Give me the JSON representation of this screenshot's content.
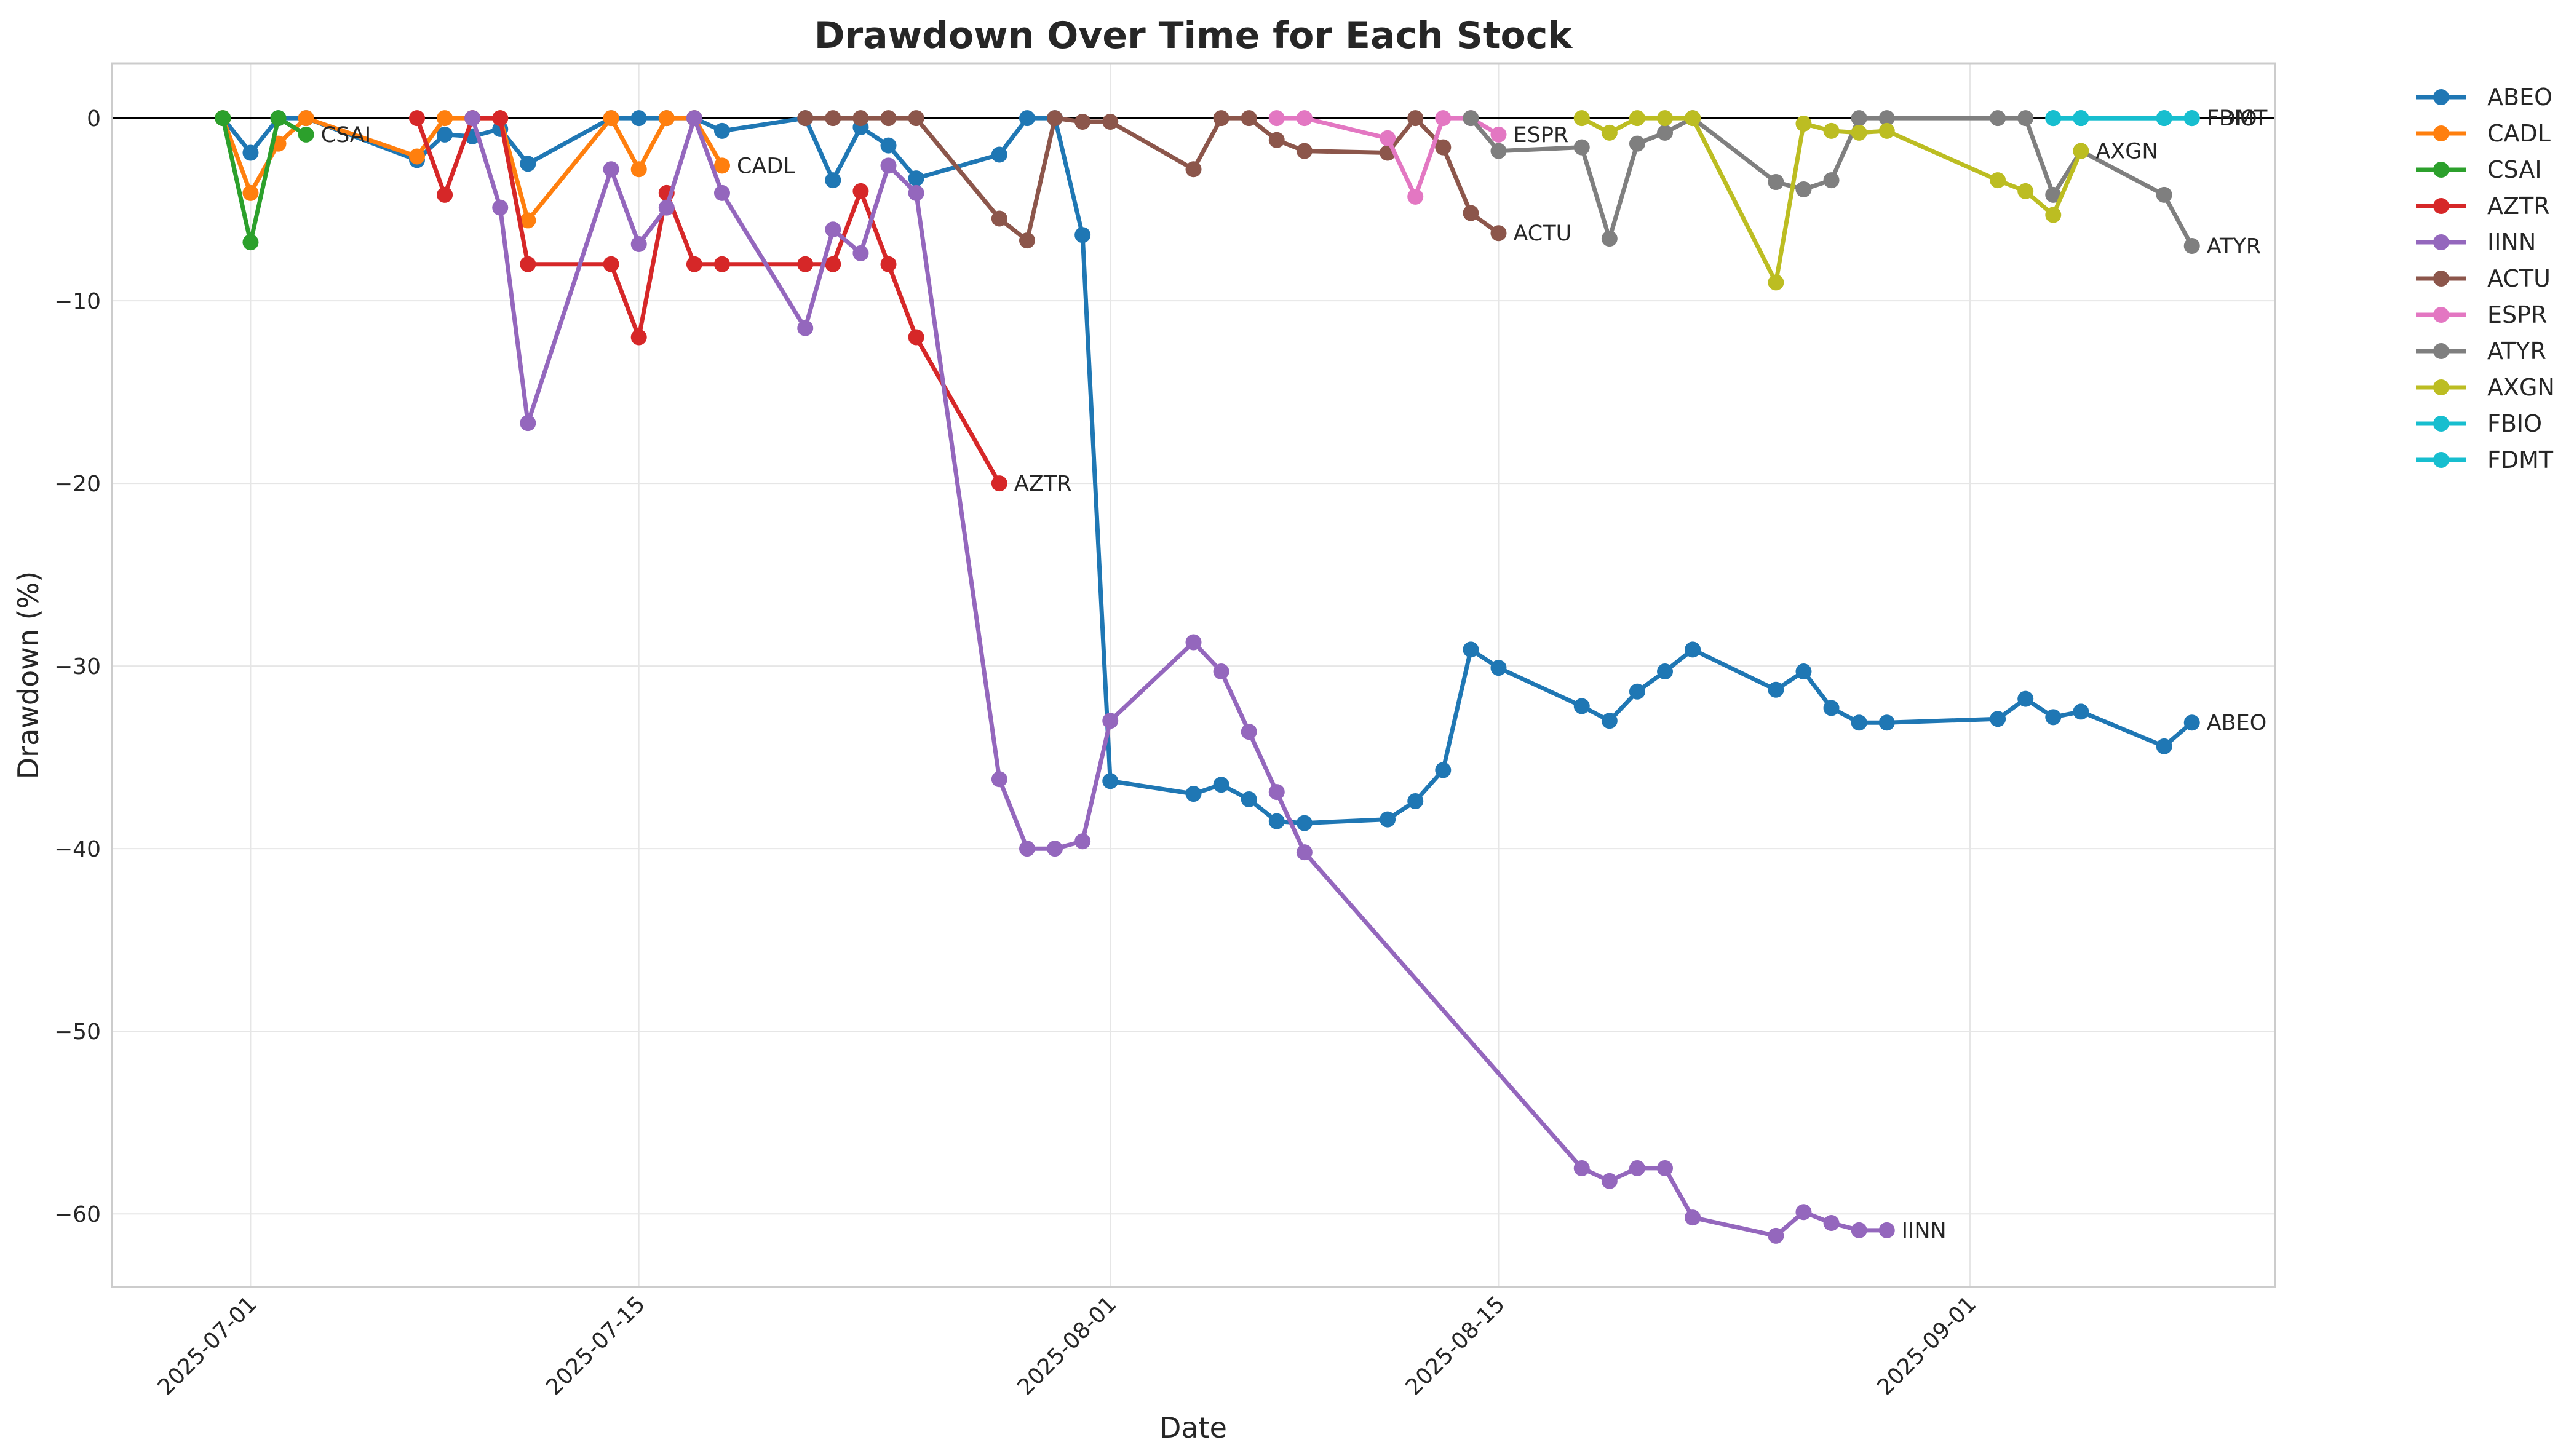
{
  "chart_data": {
    "type": "line",
    "title": "Drawdown Over Time for Each Stock",
    "xlabel": "Date",
    "ylabel": "Drawdown (%)",
    "xlim": [
      "2025-06-26",
      "2025-09-12"
    ],
    "ylim": [
      -64,
      3
    ],
    "x_ticks": [
      "2025-07-01",
      "2025-07-15",
      "2025-08-01",
      "2025-08-15",
      "2025-09-01"
    ],
    "y_ticks": [
      0,
      -10,
      -20,
      -30,
      -40,
      -50,
      -60
    ],
    "grid": true,
    "legend_position": "outside-top-right",
    "zero_line": true,
    "series": [
      {
        "name": "ABEO",
        "color": "#1f77b4",
        "points": [
          [
            "2025-06-30",
            0
          ],
          [
            "2025-07-01",
            -1.9
          ],
          [
            "2025-07-02",
            0
          ],
          [
            "2025-07-03",
            0
          ],
          [
            "2025-07-07",
            -2.3
          ],
          [
            "2025-07-08",
            -0.9
          ],
          [
            "2025-07-09",
            -1.0
          ],
          [
            "2025-07-10",
            -0.6
          ],
          [
            "2025-07-11",
            -2.5
          ],
          [
            "2025-07-14",
            0
          ],
          [
            "2025-07-15",
            0
          ],
          [
            "2025-07-16",
            0
          ],
          [
            "2025-07-17",
            0
          ],
          [
            "2025-07-18",
            -0.7
          ],
          [
            "2025-07-21",
            0
          ],
          [
            "2025-07-22",
            -3.4
          ],
          [
            "2025-07-23",
            -0.5
          ],
          [
            "2025-07-24",
            -1.5
          ],
          [
            "2025-07-25",
            -3.3
          ],
          [
            "2025-07-28",
            -2.0
          ],
          [
            "2025-07-29",
            0
          ],
          [
            "2025-07-30",
            0
          ],
          [
            "2025-07-31",
            -6.4
          ],
          [
            "2025-08-01",
            -36.3
          ],
          [
            "2025-08-04",
            -37.0
          ],
          [
            "2025-08-05",
            -36.5
          ],
          [
            "2025-08-06",
            -37.3
          ],
          [
            "2025-08-07",
            -38.5
          ],
          [
            "2025-08-08",
            -38.6
          ],
          [
            "2025-08-11",
            -38.4
          ],
          [
            "2025-08-12",
            -37.4
          ],
          [
            "2025-08-13",
            -35.7
          ],
          [
            "2025-08-14",
            -29.1
          ],
          [
            "2025-08-15",
            -30.1
          ],
          [
            "2025-08-18",
            -32.2
          ],
          [
            "2025-08-19",
            -33.0
          ],
          [
            "2025-08-20",
            -31.4
          ],
          [
            "2025-08-21",
            -30.3
          ],
          [
            "2025-08-22",
            -29.1
          ],
          [
            "2025-08-25",
            -31.3
          ],
          [
            "2025-08-26",
            -30.3
          ],
          [
            "2025-08-27",
            -32.3
          ],
          [
            "2025-08-28",
            -33.1
          ],
          [
            "2025-08-29",
            -33.1
          ],
          [
            "2025-09-02",
            -32.9
          ],
          [
            "2025-09-03",
            -31.8
          ],
          [
            "2025-09-04",
            -32.8
          ],
          [
            "2025-09-05",
            -32.5
          ],
          [
            "2025-09-08",
            -34.4
          ],
          [
            "2025-09-09",
            -33.1
          ]
        ]
      },
      {
        "name": "CADL",
        "color": "#ff7f0e",
        "points": [
          [
            "2025-06-30",
            0
          ],
          [
            "2025-07-01",
            -4.1
          ],
          [
            "2025-07-02",
            -1.4
          ],
          [
            "2025-07-03",
            0
          ],
          [
            "2025-07-07",
            -2.1
          ],
          [
            "2025-07-08",
            0
          ],
          [
            "2025-07-09",
            0
          ],
          [
            "2025-07-10",
            0
          ],
          [
            "2025-07-11",
            -5.6
          ],
          [
            "2025-07-14",
            0
          ],
          [
            "2025-07-15",
            -2.8
          ],
          [
            "2025-07-16",
            0
          ],
          [
            "2025-07-17",
            0
          ],
          [
            "2025-07-18",
            -2.6
          ]
        ]
      },
      {
        "name": "CSAI",
        "color": "#2ca02c",
        "points": [
          [
            "2025-06-30",
            0
          ],
          [
            "2025-07-01",
            -6.8
          ],
          [
            "2025-07-02",
            0
          ],
          [
            "2025-07-03",
            -0.9
          ]
        ]
      },
      {
        "name": "AZTR",
        "color": "#d62728",
        "points": [
          [
            "2025-07-07",
            0
          ],
          [
            "2025-07-08",
            -4.2
          ],
          [
            "2025-07-09",
            0
          ],
          [
            "2025-07-10",
            0
          ],
          [
            "2025-07-11",
            -8.0
          ],
          [
            "2025-07-14",
            -8.0
          ],
          [
            "2025-07-15",
            -12.0
          ],
          [
            "2025-07-16",
            -4.1
          ],
          [
            "2025-07-17",
            -8.0
          ],
          [
            "2025-07-18",
            -8.0
          ],
          [
            "2025-07-21",
            -8.0
          ],
          [
            "2025-07-22",
            -8.0
          ],
          [
            "2025-07-23",
            -4.0
          ],
          [
            "2025-07-24",
            -8.0
          ],
          [
            "2025-07-25",
            -12.0
          ],
          [
            "2025-07-28",
            -20.0
          ]
        ]
      },
      {
        "name": "IINN",
        "color": "#9467bd",
        "points": [
          [
            "2025-07-09",
            0
          ],
          [
            "2025-07-10",
            -4.9
          ],
          [
            "2025-07-11",
            -16.7
          ],
          [
            "2025-07-14",
            -2.8
          ],
          [
            "2025-07-15",
            -6.9
          ],
          [
            "2025-07-16",
            -4.9
          ],
          [
            "2025-07-17",
            0
          ],
          [
            "2025-07-18",
            -4.1
          ],
          [
            "2025-07-21",
            -11.5
          ],
          [
            "2025-07-22",
            -6.1
          ],
          [
            "2025-07-23",
            -7.4
          ],
          [
            "2025-07-24",
            -2.6
          ],
          [
            "2025-07-25",
            -4.1
          ],
          [
            "2025-07-28",
            -36.2
          ],
          [
            "2025-07-29",
            -40.0
          ],
          [
            "2025-07-30",
            -40.0
          ],
          [
            "2025-07-31",
            -39.6
          ],
          [
            "2025-08-01",
            -33.0
          ],
          [
            "2025-08-04",
            -28.7
          ],
          [
            "2025-08-05",
            -30.3
          ],
          [
            "2025-08-06",
            -33.6
          ],
          [
            "2025-08-07",
            -36.9
          ],
          [
            "2025-08-08",
            -40.2
          ],
          [
            "2025-08-18",
            -57.5
          ],
          [
            "2025-08-19",
            -58.2
          ],
          [
            "2025-08-20",
            -57.5
          ],
          [
            "2025-08-21",
            -57.5
          ],
          [
            "2025-08-22",
            -60.2
          ],
          [
            "2025-08-25",
            -61.2
          ],
          [
            "2025-08-26",
            -59.9
          ],
          [
            "2025-08-27",
            -60.5
          ],
          [
            "2025-08-28",
            -60.9
          ],
          [
            "2025-08-29",
            -60.9
          ]
        ]
      },
      {
        "name": "ACTU",
        "color": "#8c564b",
        "points": [
          [
            "2025-07-21",
            0
          ],
          [
            "2025-07-22",
            0
          ],
          [
            "2025-07-23",
            0
          ],
          [
            "2025-07-24",
            0
          ],
          [
            "2025-07-25",
            0
          ],
          [
            "2025-07-28",
            -5.5
          ],
          [
            "2025-07-29",
            -6.7
          ],
          [
            "2025-07-30",
            0
          ],
          [
            "2025-07-31",
            -0.2
          ],
          [
            "2025-08-01",
            -0.2
          ],
          [
            "2025-08-04",
            -2.8
          ],
          [
            "2025-08-05",
            0
          ],
          [
            "2025-08-06",
            0
          ],
          [
            "2025-08-07",
            -1.2
          ],
          [
            "2025-08-08",
            -1.8
          ],
          [
            "2025-08-11",
            -1.9
          ],
          [
            "2025-08-12",
            0
          ],
          [
            "2025-08-13",
            -1.6
          ],
          [
            "2025-08-14",
            -5.2
          ],
          [
            "2025-08-15",
            -6.3
          ]
        ]
      },
      {
        "name": "ESPR",
        "color": "#e377c2",
        "points": [
          [
            "2025-08-07",
            0
          ],
          [
            "2025-08-08",
            0
          ],
          [
            "2025-08-11",
            -1.1
          ],
          [
            "2025-08-12",
            -4.3
          ],
          [
            "2025-08-13",
            0
          ],
          [
            "2025-08-14",
            0
          ],
          [
            "2025-08-15",
            -0.9
          ]
        ]
      },
      {
        "name": "ATYR",
        "color": "#7f7f7f",
        "points": [
          [
            "2025-08-14",
            0
          ],
          [
            "2025-08-15",
            -1.8
          ],
          [
            "2025-08-18",
            -1.6
          ],
          [
            "2025-08-19",
            -6.6
          ],
          [
            "2025-08-20",
            -1.4
          ],
          [
            "2025-08-21",
            -0.8
          ],
          [
            "2025-08-22",
            0
          ],
          [
            "2025-08-25",
            -3.5
          ],
          [
            "2025-08-26",
            -3.9
          ],
          [
            "2025-08-27",
            -3.4
          ],
          [
            "2025-08-28",
            0
          ],
          [
            "2025-08-29",
            0
          ],
          [
            "2025-09-02",
            0
          ],
          [
            "2025-09-03",
            0
          ],
          [
            "2025-09-04",
            -4.2
          ],
          [
            "2025-09-05",
            -1.8
          ],
          [
            "2025-09-08",
            -4.2
          ],
          [
            "2025-09-09",
            -7.0
          ]
        ]
      },
      {
        "name": "AXGN",
        "color": "#bcbd22",
        "points": [
          [
            "2025-08-18",
            0
          ],
          [
            "2025-08-19",
            -0.8
          ],
          [
            "2025-08-20",
            0
          ],
          [
            "2025-08-21",
            0
          ],
          [
            "2025-08-22",
            0
          ],
          [
            "2025-08-25",
            -9.0
          ],
          [
            "2025-08-26",
            -0.3
          ],
          [
            "2025-08-27",
            -0.7
          ],
          [
            "2025-08-28",
            -0.8
          ],
          [
            "2025-08-29",
            -0.7
          ],
          [
            "2025-09-02",
            -3.4
          ],
          [
            "2025-09-03",
            -4.0
          ],
          [
            "2025-09-04",
            -5.3
          ],
          [
            "2025-09-05",
            -1.8
          ]
        ]
      },
      {
        "name": "FBIO",
        "color": "#17becf",
        "points": [
          [
            "2025-09-04",
            0
          ],
          [
            "2025-09-05",
            0
          ],
          [
            "2025-09-08",
            0
          ],
          [
            "2025-09-09",
            0
          ]
        ]
      },
      {
        "name": "FDMT",
        "color": "#17becf",
        "points": [
          [
            "2025-09-04",
            0
          ],
          [
            "2025-09-05",
            0
          ],
          [
            "2025-09-08",
            0
          ],
          [
            "2025-09-09",
            0
          ]
        ]
      }
    ]
  }
}
